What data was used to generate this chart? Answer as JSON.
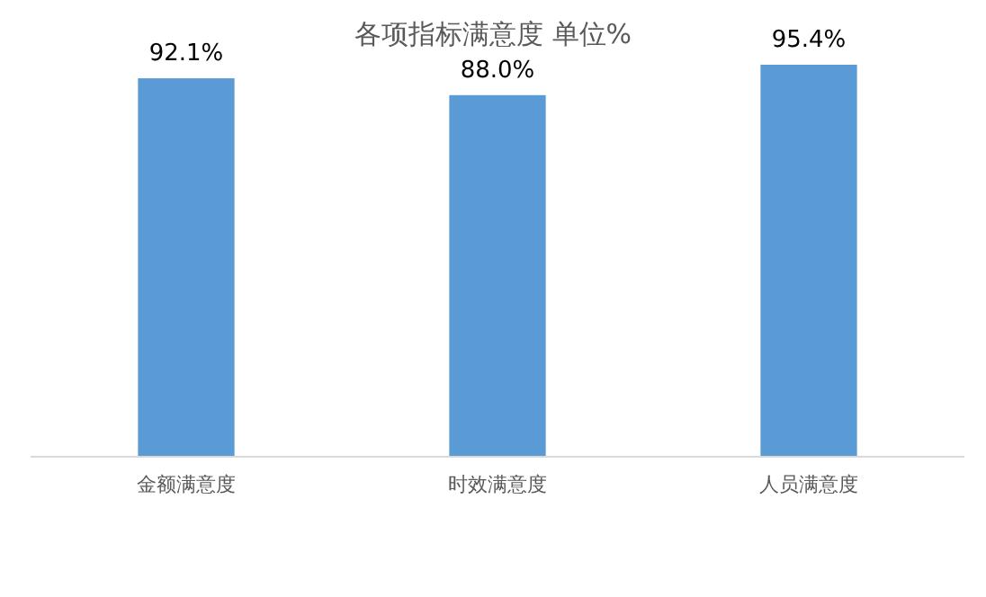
{
  "chart_data": {
    "type": "bar",
    "title": "各项指标满意度 单位%",
    "categories": [
      "金额满意度",
      "时效满意度",
      "人员满意度"
    ],
    "values": [
      92.1,
      88.0,
      95.4
    ],
    "value_labels": [
      "92.1%",
      "88.0%",
      "95.4%"
    ],
    "color": "#5b9bd5",
    "tick_labels": "x"
  }
}
